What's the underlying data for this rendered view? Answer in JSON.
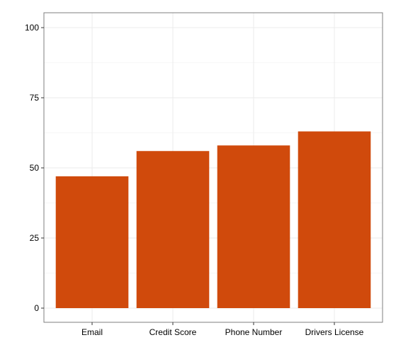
{
  "chart_data": {
    "type": "bar",
    "categories": [
      "Email",
      "Credit Score",
      "Phone Number",
      "Drivers License"
    ],
    "values": [
      47,
      56,
      58,
      63
    ],
    "ylim": [
      0,
      100
    ],
    "yticks": [
      0,
      25,
      50,
      75,
      100
    ],
    "ytick_labels": [
      "0",
      "25",
      "50",
      "75",
      "100"
    ],
    "bar_color": "#d04a0c",
    "grid": true,
    "title": "",
    "xlabel": "",
    "ylabel": ""
  }
}
